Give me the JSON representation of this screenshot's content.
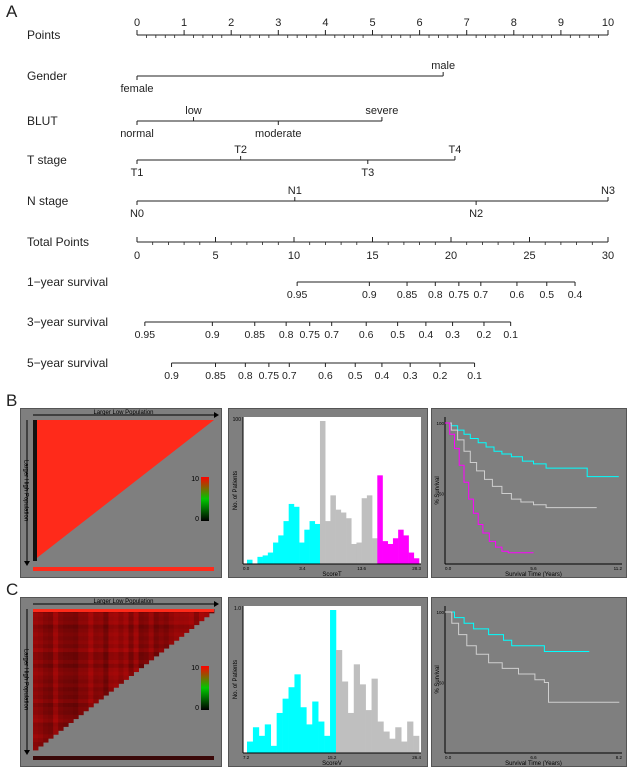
{
  "panel_labels": {
    "a": "A",
    "b": "B",
    "c": "C"
  },
  "nomogram": {
    "rows": [
      {
        "label": "Points",
        "axis": "points",
        "range": [
          0,
          10
        ],
        "major_ticks": [
          0,
          1,
          2,
          3,
          4,
          5,
          6,
          7,
          8,
          9,
          10
        ],
        "minor_step": 0.2
      },
      {
        "label": "Gender",
        "axis": "points",
        "categories": [
          {
            "name": "female",
            "points": 0,
            "side": "below"
          },
          {
            "name": "male",
            "points": 6.5,
            "side": "above"
          }
        ]
      },
      {
        "label": "BLUT",
        "axis": "points",
        "categories": [
          {
            "name": "normal",
            "points": 0,
            "side": "below"
          },
          {
            "name": "low",
            "points": 1.2,
            "side": "above"
          },
          {
            "name": "moderate",
            "points": 3,
            "side": "below"
          },
          {
            "name": "severe",
            "points": 5.2,
            "side": "above"
          }
        ]
      },
      {
        "label": "T stage",
        "axis": "points",
        "categories": [
          {
            "name": "T1",
            "points": 0,
            "side": "below"
          },
          {
            "name": "T2",
            "points": 2.2,
            "side": "above"
          },
          {
            "name": "T3",
            "points": 4.9,
            "side": "below"
          },
          {
            "name": "T4",
            "points": 6.75,
            "side": "above"
          }
        ]
      },
      {
        "label": "N stage",
        "axis": "points",
        "categories": [
          {
            "name": "N0",
            "points": 0,
            "side": "below"
          },
          {
            "name": "N1",
            "points": 3.35,
            "side": "above"
          },
          {
            "name": "N2",
            "points": 7.2,
            "side": "below"
          },
          {
            "name": "N3",
            "points": 10,
            "side": "above"
          }
        ]
      },
      {
        "label": "Total Points",
        "axis": "total",
        "range": [
          0,
          30
        ],
        "major_ticks": [
          0,
          5,
          10,
          15,
          20,
          25,
          30
        ],
        "minor_step": 1
      },
      {
        "label": "1−year survival",
        "axis": "total",
        "ticks": [
          {
            "label": "0.95",
            "total": 10.2
          },
          {
            "label": "0.9",
            "total": 14.8
          },
          {
            "label": "0.85",
            "total": 17.2
          },
          {
            "label": "0.8",
            "total": 19.0
          },
          {
            "label": "0.75",
            "total": 20.5
          },
          {
            "label": "0.7",
            "total": 21.9
          },
          {
            "label": "0.6",
            "total": 24.2
          },
          {
            "label": "0.5",
            "total": 26.1
          },
          {
            "label": "0.4",
            "total": 27.9
          }
        ]
      },
      {
        "label": "3−year survival",
        "axis": "total",
        "ticks": [
          {
            "label": "0.95",
            "total": 0.5
          },
          {
            "label": "0.9",
            "total": 4.8
          },
          {
            "label": "0.85",
            "total": 7.5
          },
          {
            "label": "0.8",
            "total": 9.5
          },
          {
            "label": "0.75",
            "total": 11.0
          },
          {
            "label": "0.7",
            "total": 12.4
          },
          {
            "label": "0.6",
            "total": 14.6
          },
          {
            "label": "0.5",
            "total": 16.6
          },
          {
            "label": "0.4",
            "total": 18.4
          },
          {
            "label": "0.3",
            "total": 20.1
          },
          {
            "label": "0.2",
            "total": 22.1
          },
          {
            "label": "0.1",
            "total": 23.8
          }
        ]
      },
      {
        "label": "5−year survival",
        "axis": "total",
        "ticks": [
          {
            "label": "0.9",
            "total": 2.2
          },
          {
            "label": "0.85",
            "total": 5.0
          },
          {
            "label": "0.8",
            "total": 6.9
          },
          {
            "label": "0.75",
            "total": 8.4
          },
          {
            "label": "0.7",
            "total": 9.7
          },
          {
            "label": "0.6",
            "total": 12.0
          },
          {
            "label": "0.5",
            "total": 13.9
          },
          {
            "label": "0.4",
            "total": 15.6
          },
          {
            "label": "0.3",
            "total": 17.4
          },
          {
            "label": "0.2",
            "total": 19.3
          },
          {
            "label": "0.1",
            "total": 21.5
          }
        ]
      }
    ]
  },
  "chart_data": [
    {
      "type": "heatmap",
      "panel": "B",
      "top_label": "Larger Low Population",
      "side_label": "Larger High Population",
      "pattern": "uniform",
      "fill_color": "#ff2a1a",
      "scale": {
        "max": "10",
        "min": "0",
        "colors": [
          "#000000",
          "#00c800",
          "#ff0000"
        ]
      }
    },
    {
      "type": "bar",
      "panel": "B",
      "ylabel": "No. of Patients",
      "xlabel": "ScoreT",
      "y_top_tick": "100",
      "x_ticks": [
        "0.0",
        "3.4",
        "13.6",
        "28.3"
      ],
      "ylim": [
        0,
        100
      ],
      "groups": [
        {
          "color": "#00ffff",
          "values": [
            3,
            0,
            5,
            6,
            8,
            15,
            20,
            30,
            42,
            40,
            15,
            24,
            30,
            28
          ]
        },
        {
          "color": "#bfbfbf",
          "values": [
            100,
            30,
            48,
            38,
            36,
            32,
            14,
            15,
            46,
            48,
            18
          ]
        },
        {
          "color": "#ff00ff",
          "values": [
            62,
            16,
            14,
            18,
            24,
            20,
            8,
            4
          ]
        }
      ]
    },
    {
      "type": "line",
      "panel": "B",
      "ylabel": "% Survival",
      "xlabel": "Survival Time (Years)",
      "y_ticks": [
        "100",
        "50"
      ],
      "x_ticks": [
        "0.0",
        "5.6",
        "11.2"
      ],
      "xlim": [
        0,
        11.2
      ],
      "ylim": [
        0,
        100
      ],
      "series": [
        {
          "color": "#00ffff",
          "points": [
            [
              0,
              100
            ],
            [
              0.4,
              98
            ],
            [
              0.8,
              95
            ],
            [
              1.2,
              92
            ],
            [
              1.6,
              89
            ],
            [
              2.1,
              86
            ],
            [
              2.6,
              83
            ],
            [
              3.1,
              80
            ],
            [
              3.6,
              78
            ],
            [
              4.2,
              76
            ],
            [
              4.9,
              73
            ],
            [
              5.6,
              71
            ],
            [
              6.4,
              68
            ],
            [
              7.8,
              68
            ],
            [
              9.0,
              62
            ],
            [
              11.0,
              62
            ]
          ]
        },
        {
          "color": "#cfcfcf",
          "points": [
            [
              0,
              100
            ],
            [
              0.4,
              95
            ],
            [
              0.8,
              88
            ],
            [
              1.2,
              80
            ],
            [
              1.6,
              72
            ],
            [
              2.0,
              66
            ],
            [
              2.5,
              60
            ],
            [
              3.0,
              55
            ],
            [
              3.6,
              50
            ],
            [
              4.2,
              46
            ],
            [
              4.8,
              44
            ],
            [
              5.6,
              42
            ],
            [
              6.4,
              40
            ],
            [
              9.6,
              40
            ]
          ]
        },
        {
          "color": "#ff00ff",
          "points": [
            [
              0,
              100
            ],
            [
              0.3,
              92
            ],
            [
              0.6,
              82
            ],
            [
              0.9,
              70
            ],
            [
              1.2,
              58
            ],
            [
              1.5,
              46
            ],
            [
              1.8,
              36
            ],
            [
              2.1,
              28
            ],
            [
              2.4,
              22
            ],
            [
              2.8,
              16
            ],
            [
              3.2,
              12
            ],
            [
              3.6,
              9
            ],
            [
              4.0,
              8
            ],
            [
              5.6,
              8
            ]
          ]
        }
      ]
    },
    {
      "type": "heatmap",
      "panel": "C",
      "top_label": "Larger Low Population",
      "side_label": "Larger High Population",
      "pattern": "striped",
      "fill_color": "#7a0d0d",
      "scale": {
        "max": "10",
        "min": "0",
        "colors": [
          "#000000",
          "#00c800",
          "#ff0000"
        ]
      }
    },
    {
      "type": "bar",
      "panel": "C",
      "ylabel": "No. of Patients",
      "xlabel": "ScoreV",
      "y_top_tick": "1.0",
      "x_ticks": [
        "7.2",
        "15.2",
        "26.4"
      ],
      "ylim": [
        0,
        1
      ],
      "groups": [
        {
          "color": "#00ffff",
          "values": [
            0.08,
            0.18,
            0.12,
            0.2,
            0.05,
            0.28,
            0.38,
            0.46,
            0.55,
            0.32,
            0.2,
            0.36,
            0.22,
            0.12,
            1.0
          ]
        },
        {
          "color": "#bfbfbf",
          "values": [
            0.72,
            0.5,
            0.28,
            0.62,
            0.48,
            0.3,
            0.52,
            0.22,
            0.15,
            0.1,
            0.18,
            0.08,
            0.22,
            0.12
          ]
        }
      ]
    },
    {
      "type": "line",
      "panel": "C",
      "ylabel": "% Survival",
      "xlabel": "Survival Time (Years)",
      "y_ticks": [
        "100",
        "50"
      ],
      "x_ticks": [
        "0.0",
        "6.6",
        "8.2"
      ],
      "xlim": [
        0,
        13
      ],
      "ylim": [
        0,
        100
      ],
      "series": [
        {
          "color": "#00ffff",
          "points": [
            [
              0,
              100
            ],
            [
              0.7,
              96
            ],
            [
              1.4,
              92
            ],
            [
              2.1,
              88
            ],
            [
              3.2,
              84
            ],
            [
              4.3,
              80
            ],
            [
              4.9,
              76
            ],
            [
              6.3,
              76
            ],
            [
              7.3,
              72
            ],
            [
              10.6,
              72
            ]
          ]
        },
        {
          "color": "#cfcfcf",
          "points": [
            [
              0,
              100
            ],
            [
              0.5,
              92
            ],
            [
              1.0,
              84
            ],
            [
              1.6,
              76
            ],
            [
              2.3,
              70
            ],
            [
              3.2,
              64
            ],
            [
              4.2,
              60
            ],
            [
              5.4,
              56
            ],
            [
              6.6,
              52
            ],
            [
              7.3,
              50
            ],
            [
              7.6,
              36
            ],
            [
              12.8,
              36
            ]
          ]
        }
      ]
    }
  ]
}
